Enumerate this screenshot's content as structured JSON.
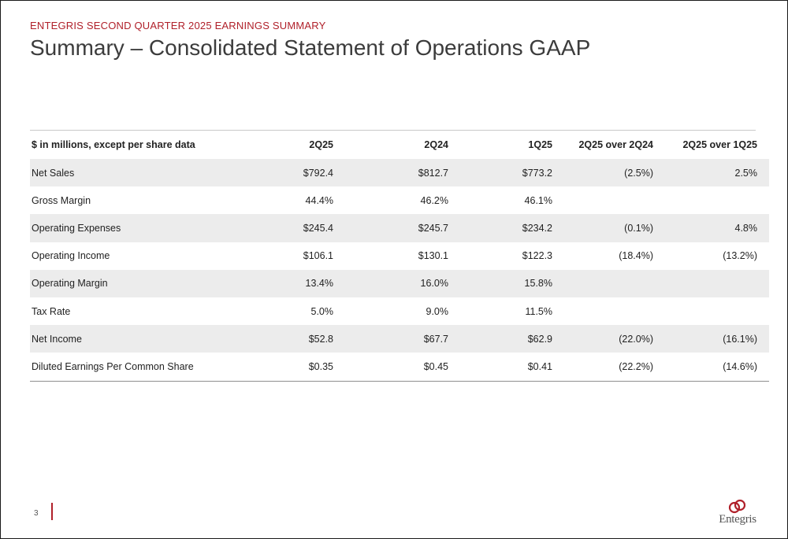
{
  "header": {
    "eyebrow": "ENTEGRIS SECOND QUARTER 2025 EARNINGS SUMMARY",
    "title": "Summary – Consolidated Statement of Operations GAAP"
  },
  "table": {
    "columns": [
      "$ in millions, except per share data",
      "2Q25",
      "2Q24",
      "1Q25",
      "2Q25 over 2Q24",
      "2Q25 over 1Q25"
    ],
    "rows": [
      [
        "Net Sales",
        "$792.4",
        "$812.7",
        "$773.2",
        "(2.5%)",
        "2.5%"
      ],
      [
        "Gross Margin",
        "44.4%",
        "46.2%",
        "46.1%",
        "",
        ""
      ],
      [
        "Operating Expenses",
        "$245.4",
        "$245.7",
        "$234.2",
        "(0.1%)",
        "4.8%"
      ],
      [
        "Operating Income",
        "$106.1",
        "$130.1",
        "$122.3",
        "(18.4%)",
        "(13.2%)"
      ],
      [
        "Operating Margin",
        "13.4%",
        "16.0%",
        "15.8%",
        "",
        ""
      ],
      [
        "Tax Rate",
        "5.0%",
        "9.0%",
        "11.5%",
        "",
        ""
      ],
      [
        "Net Income",
        "$52.8",
        "$67.7",
        "$62.9",
        "(22.0%)",
        "(16.1%)"
      ],
      [
        "Diluted Earnings Per Common Share",
        "$0.35",
        "$0.45",
        "$0.41",
        "(22.2%)",
        "(14.6%)"
      ]
    ]
  },
  "footer": {
    "page_number": "3",
    "logo_text": "Entegris",
    "logo_icon": "entegris-rings-icon",
    "accent_color": "#b0202a"
  }
}
